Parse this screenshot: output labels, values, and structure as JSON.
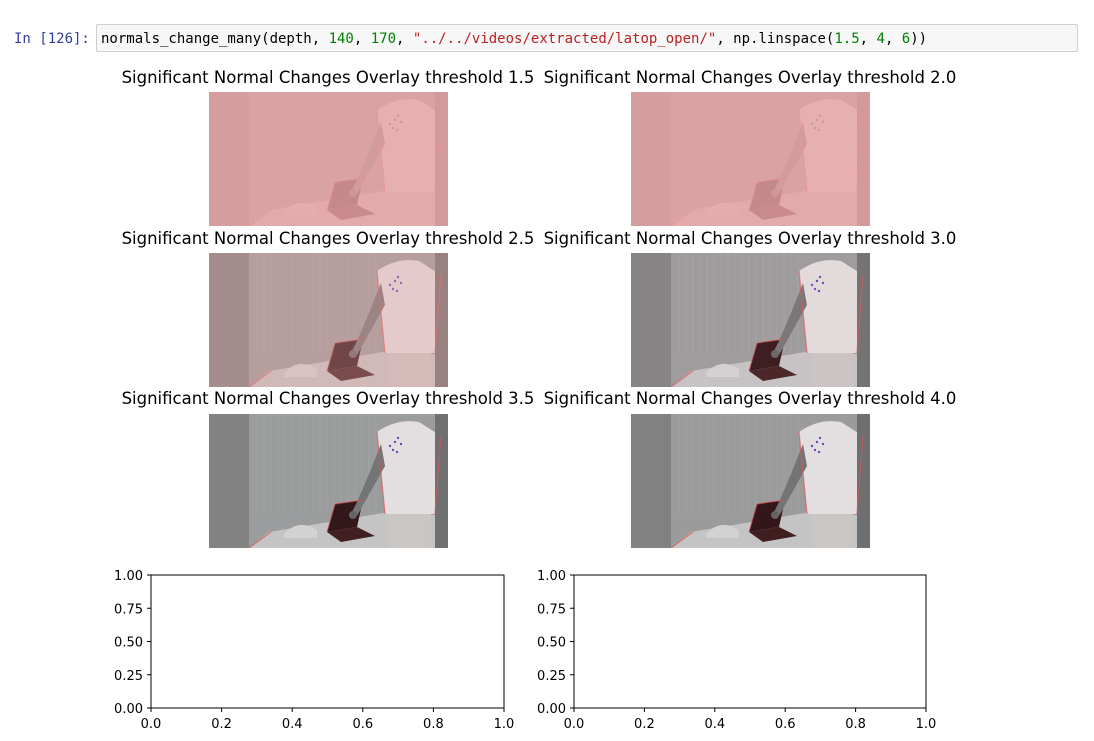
{
  "cell": {
    "prompt": "In [126]:",
    "code_tokens": [
      {
        "t": "normals_change_many(depth, ",
        "c": ""
      },
      {
        "t": "140",
        "c": "tok-num"
      },
      {
        "t": ", ",
        "c": ""
      },
      {
        "t": "170",
        "c": "tok-num"
      },
      {
        "t": ", ",
        "c": ""
      },
      {
        "t": "\"../../videos/extracted/latop_open/\"",
        "c": "tok-str"
      },
      {
        "t": ", np.linspace(",
        "c": ""
      },
      {
        "t": "1.5",
        "c": "tok-num"
      },
      {
        "t": ", ",
        "c": ""
      },
      {
        "t": "4",
        "c": "tok-num"
      },
      {
        "t": ", ",
        "c": ""
      },
      {
        "t": "6",
        "c": "tok-num"
      },
      {
        "t": "))",
        "c": ""
      }
    ]
  },
  "overlays": [
    {
      "title": "Significant Normal Changes Overlay threshold 1.5",
      "tint": 1.0
    },
    {
      "title": "Significant Normal Changes Overlay threshold 2.0",
      "tint": 1.0
    },
    {
      "title": "Significant Normal Changes Overlay threshold 2.5",
      "tint": 0.45
    },
    {
      "title": "Significant Normal Changes Overlay threshold 3.0",
      "tint": 0.12
    },
    {
      "title": "Significant Normal Changes Overlay threshold 3.5",
      "tint": 0.06
    },
    {
      "title": "Significant Normal Changes Overlay threshold 4.0",
      "tint": 0.05
    }
  ],
  "empty_axes": [
    {
      "xlim": [
        0.0,
        1.0
      ],
      "ylim": [
        0.0,
        1.0
      ],
      "xticks": [
        "0.0",
        "0.2",
        "0.4",
        "0.6",
        "0.8",
        "1.0"
      ],
      "yticks": [
        "0.00",
        "0.25",
        "0.50",
        "0.75",
        "1.00"
      ]
    },
    {
      "xlim": [
        0.0,
        1.0
      ],
      "ylim": [
        0.0,
        1.0
      ],
      "xticks": [
        "0.0",
        "0.2",
        "0.4",
        "0.6",
        "0.8",
        "1.0"
      ],
      "yticks": [
        "0.00",
        "0.25",
        "0.50",
        "0.75",
        "1.00"
      ]
    }
  ],
  "colors": {
    "overlay_red": "#e9a3a3",
    "scene_gray": "#8f9394",
    "tshirt": "#e2e0e1",
    "laptop": "#2a0f12"
  }
}
